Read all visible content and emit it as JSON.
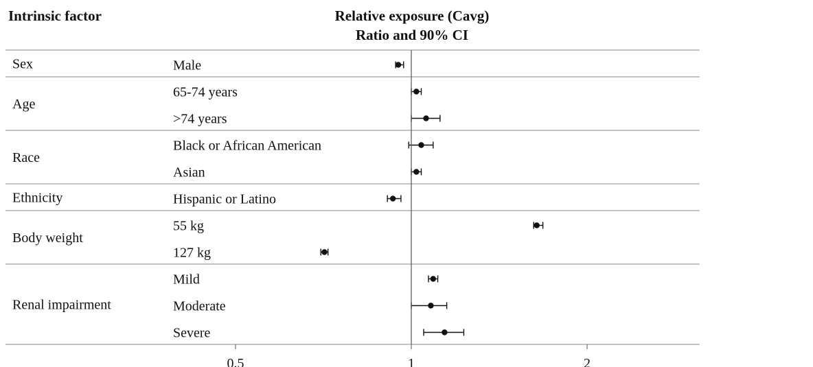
{
  "chart_data": {
    "type": "forest",
    "headers": {
      "factor": "Intrinsic factor",
      "exposure_line1": "Relative exposure (Cavg)",
      "exposure_line2": "Ratio and 90% CI"
    },
    "x_scale": "log2",
    "xlim": [
      0.37,
      2.7
    ],
    "x_ticks": [
      {
        "value": 0.5,
        "label": "0.5"
      },
      {
        "value": 1,
        "label": "1"
      },
      {
        "value": 2,
        "label": "2"
      }
    ],
    "reference_line": 1,
    "groups": [
      {
        "factor": "Sex",
        "rows": [
          {
            "label": "Male",
            "estimate": 0.95,
            "lower": 0.94,
            "upper": 0.97
          }
        ]
      },
      {
        "factor": "Age",
        "rows": [
          {
            "label": "65-74 years",
            "estimate": 1.02,
            "lower": 1.0,
            "upper": 1.04
          },
          {
            "label": ">74 years",
            "estimate": 1.06,
            "lower": 1.0,
            "upper": 1.12
          }
        ]
      },
      {
        "factor": "Race",
        "rows": [
          {
            "label": "Black or African American",
            "estimate": 1.04,
            "lower": 0.99,
            "upper": 1.09
          },
          {
            "label": "Asian",
            "estimate": 1.02,
            "lower": 1.0,
            "upper": 1.04
          }
        ]
      },
      {
        "factor": "Ethnicity",
        "rows": [
          {
            "label": "Hispanic or Latino",
            "estimate": 0.93,
            "lower": 0.91,
            "upper": 0.96
          }
        ]
      },
      {
        "factor": "Body weight",
        "rows": [
          {
            "label": "55 kg",
            "estimate": 1.64,
            "lower": 1.62,
            "upper": 1.68
          },
          {
            "label": "127 kg",
            "estimate": 0.71,
            "lower": 0.7,
            "upper": 0.72
          }
        ]
      },
      {
        "factor": "Renal impairment",
        "rows": [
          {
            "label": "Mild",
            "estimate": 1.09,
            "lower": 1.07,
            "upper": 1.11
          },
          {
            "label": "Moderate",
            "estimate": 1.08,
            "lower": 1.0,
            "upper": 1.15
          },
          {
            "label": "Severe",
            "estimate": 1.14,
            "lower": 1.05,
            "upper": 1.23
          }
        ]
      }
    ]
  }
}
